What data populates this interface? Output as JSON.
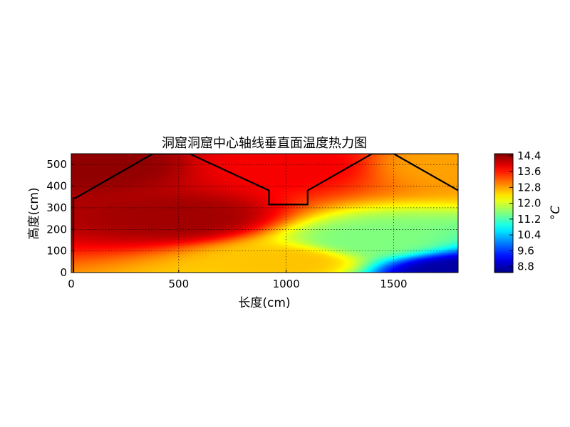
{
  "chart_data": {
    "type": "heatmap",
    "title": "洞窟洞窟中心轴线垂直面温度热力图",
    "xlabel": "长度(cm)",
    "ylabel": "高度(cm)",
    "xlim": [
      0,
      1800
    ],
    "ylim": [
      0,
      550
    ],
    "x_ticks": [
      "0",
      "500",
      "1000",
      "1500"
    ],
    "y_ticks": [
      "0",
      "100",
      "200",
      "300",
      "400",
      "500"
    ],
    "grid": true,
    "colormap": "jet",
    "colorbar": {
      "label": "°C",
      "min": 8.5,
      "max": 14.5,
      "ticks": [
        "8.8",
        "9.6",
        "10.4",
        "11.2",
        "12.0",
        "12.8",
        "13.6",
        "14.4"
      ]
    },
    "field": {
      "description_points_celsius": [
        {
          "x": 100,
          "y": 500,
          "value": 14.4
        },
        {
          "x": 500,
          "y": 250,
          "value": 14.3
        },
        {
          "x": 1000,
          "y": 500,
          "value": 13.8
        },
        {
          "x": 1000,
          "y": 50,
          "value": 12.6
        },
        {
          "x": 1400,
          "y": 150,
          "value": 11.5
        },
        {
          "x": 1800,
          "y": 500,
          "value": 12.8
        },
        {
          "x": 1800,
          "y": 0,
          "value": 8.7
        }
      ]
    },
    "cave_outline": {
      "x": [
        10,
        10,
        20,
        20,
        380,
        550,
        920,
        920,
        1100,
        1100,
        1400,
        1500,
        1800
      ],
      "y": [
        0,
        345,
        345,
        345,
        550,
        550,
        380,
        315,
        315,
        380,
        550,
        550,
        380
      ]
    },
    "colors": {
      "outline": "#000000",
      "grid": "#000000"
    }
  }
}
